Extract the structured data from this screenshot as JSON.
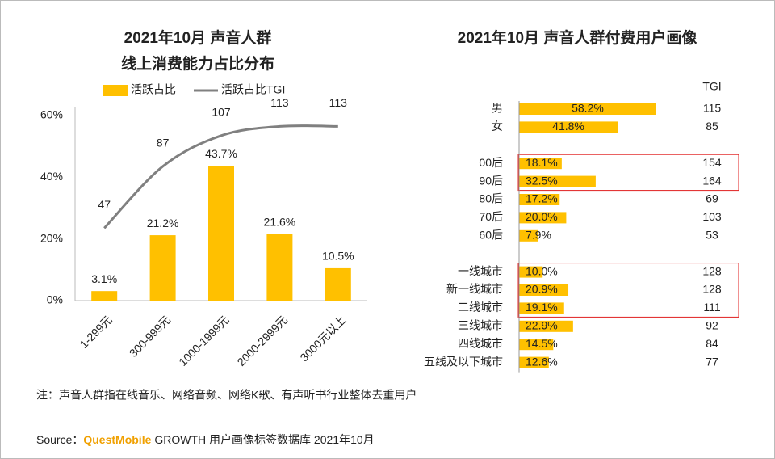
{
  "chart_data": [
    {
      "type": "combo",
      "title": [
        "2021年10月 声音人群",
        "线上消费能力占比分布"
      ],
      "categories": [
        "1-299元",
        "300-999元",
        "1000-1999元",
        "2000-2999元",
        "3000元以上"
      ],
      "series": [
        {
          "name": "活跃占比",
          "type": "bar",
          "color": "#FFC000",
          "values": [
            3.1,
            21.2,
            43.7,
            21.6,
            10.5
          ],
          "value_labels": [
            "3.1%",
            "21.2%",
            "43.7%",
            "21.6%",
            "10.5%"
          ]
        },
        {
          "name": "活跃占比TGI",
          "type": "line",
          "axis": "y2",
          "color": "#808080",
          "values": [
            47,
            87,
            107,
            113,
            113
          ]
        }
      ],
      "ylim": [
        0,
        60
      ],
      "yticks": [
        {
          "value": 0,
          "label": "0%"
        },
        {
          "value": 20,
          "label": "20%"
        },
        {
          "value": 40,
          "label": "40%"
        },
        {
          "value": 60,
          "label": "60%"
        }
      ],
      "y2lim": [
        0,
        120
      ],
      "grid": false
    },
    {
      "type": "hbar",
      "title": "2021年10月 声音人群付费用户画像",
      "tgi_label": "TGI",
      "color": "#FFC000",
      "highlight_color": "#e02020",
      "xlim": [
        0,
        100
      ],
      "groups": [
        {
          "categories": [
            "男",
            "女"
          ],
          "values": [
            58.2,
            41.8
          ],
          "value_labels": [
            "58.2%",
            "41.8%"
          ],
          "tgi": [
            115,
            85
          ],
          "highlight": [
            true,
            false
          ],
          "boxed": [
            false,
            false
          ]
        },
        {
          "categories": [
            "00后",
            "90后",
            "80后",
            "70后",
            "60后"
          ],
          "values": [
            18.1,
            32.5,
            17.2,
            20.0,
            7.9
          ],
          "value_labels": [
            "18.1%",
            "32.5%",
            "17.2%",
            "20.0%",
            "7.9%"
          ],
          "tgi": [
            154,
            164,
            69,
            103,
            53
          ],
          "highlight": [
            true,
            true,
            false,
            true,
            false
          ],
          "boxed": [
            true,
            true,
            false,
            false,
            false
          ]
        },
        {
          "categories": [
            "一线城市",
            "新一线城市",
            "二线城市",
            "三线城市",
            "四线城市",
            "五线及以下城市"
          ],
          "values": [
            10.0,
            20.9,
            19.1,
            22.9,
            14.5,
            12.6
          ],
          "value_labels": [
            "10.0%",
            "20.9%",
            "19.1%",
            "22.9%",
            "14.5%",
            "12.6%"
          ],
          "tgi": [
            128,
            128,
            111,
            92,
            84,
            77
          ],
          "highlight": [
            true,
            true,
            true,
            false,
            false,
            false
          ],
          "boxed": [
            true,
            true,
            true,
            false,
            false,
            false
          ]
        }
      ]
    }
  ],
  "note": "注：声音人群指在线音乐、网络音频、网络K歌、有声听书行业整体去重用户",
  "source": {
    "prefix": "Source：",
    "brand": "QuestMobile",
    "text": "GROWTH 用户画像标签数据库 2021年10月"
  }
}
